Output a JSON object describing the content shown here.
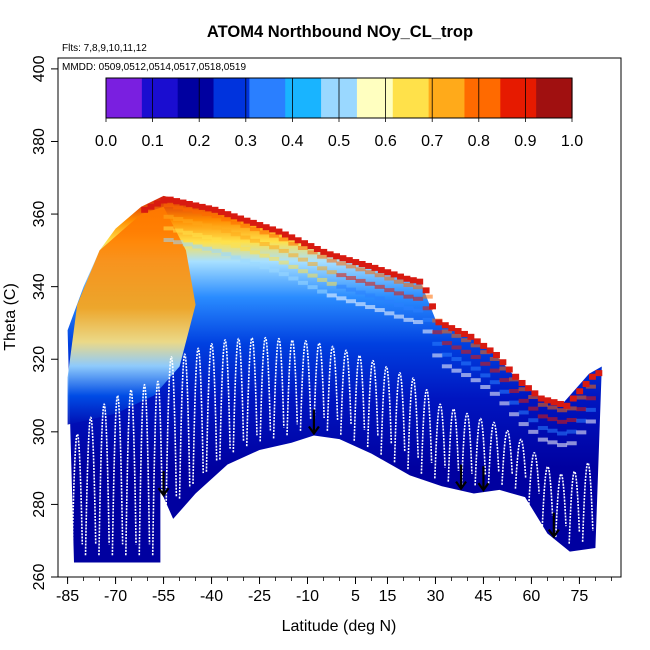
{
  "chart_data": {
    "type": "heatmap",
    "title": "ATOM4 Northbound NOy_CL_trop",
    "subtitle_lines": [
      "Flts: 7,8,9,10,11,12",
      "MMDD: 0509,0512,0514,0517,0518,0519"
    ],
    "xlabel": "Latitude (deg N)",
    "ylabel": "Theta (C)",
    "xlim": [
      -88,
      88
    ],
    "ylim": [
      260,
      403
    ],
    "x_ticks": [
      -85,
      -70,
      -55,
      -40,
      -25,
      -10,
      5,
      15,
      30,
      45,
      60,
      75
    ],
    "y_ticks": [
      260,
      280,
      300,
      320,
      340,
      360,
      380,
      400
    ],
    "colorbar": {
      "ticks": [
        "0.0",
        "0.1",
        "0.2",
        "0.3",
        "0.4",
        "0.5",
        "0.6",
        "0.7",
        "0.8",
        "0.9",
        "1.0"
      ],
      "range": [
        0,
        1
      ],
      "colors": [
        "#7a1fe0",
        "#1a0dd0",
        "#0000a0",
        "#0033dd",
        "#2a7fff",
        "#19b4ff",
        "#9ad8ff",
        "#ffffc0",
        "#ffe14a",
        "#ffaa1a",
        "#ff6a00",
        "#e61a00",
        "#a01010"
      ]
    },
    "surface_boundary": [
      [
        -83,
        264
      ],
      [
        -56,
        264
      ],
      [
        -56,
        284
      ],
      [
        -52,
        276
      ],
      [
        -45,
        283
      ],
      [
        -35,
        291
      ],
      [
        -25,
        295
      ],
      [
        -15,
        297
      ],
      [
        -8,
        299
      ],
      [
        0,
        298
      ],
      [
        10,
        294
      ],
      [
        22,
        288
      ],
      [
        32,
        285
      ],
      [
        42,
        283
      ],
      [
        50,
        284
      ],
      [
        58,
        282
      ],
      [
        65,
        272
      ],
      [
        72,
        267
      ],
      [
        80,
        268
      ]
    ],
    "top_boundary": [
      [
        -85,
        328
      ],
      [
        -80,
        340
      ],
      [
        -75,
        350
      ],
      [
        -70,
        356
      ],
      [
        -62,
        362
      ],
      [
        -55,
        365
      ],
      [
        -40,
        362
      ],
      [
        -20,
        356
      ],
      [
        -5,
        350
      ],
      [
        10,
        346
      ],
      [
        20,
        343
      ],
      [
        25,
        342
      ],
      [
        30,
        331
      ],
      [
        40,
        327
      ],
      [
        48,
        322
      ],
      [
        55,
        315
      ],
      [
        62,
        310
      ],
      [
        70,
        308
      ],
      [
        78,
        316
      ],
      [
        82,
        318
      ]
    ],
    "arrows_lat": [
      -55,
      -8,
      38,
      45,
      67
    ]
  }
}
